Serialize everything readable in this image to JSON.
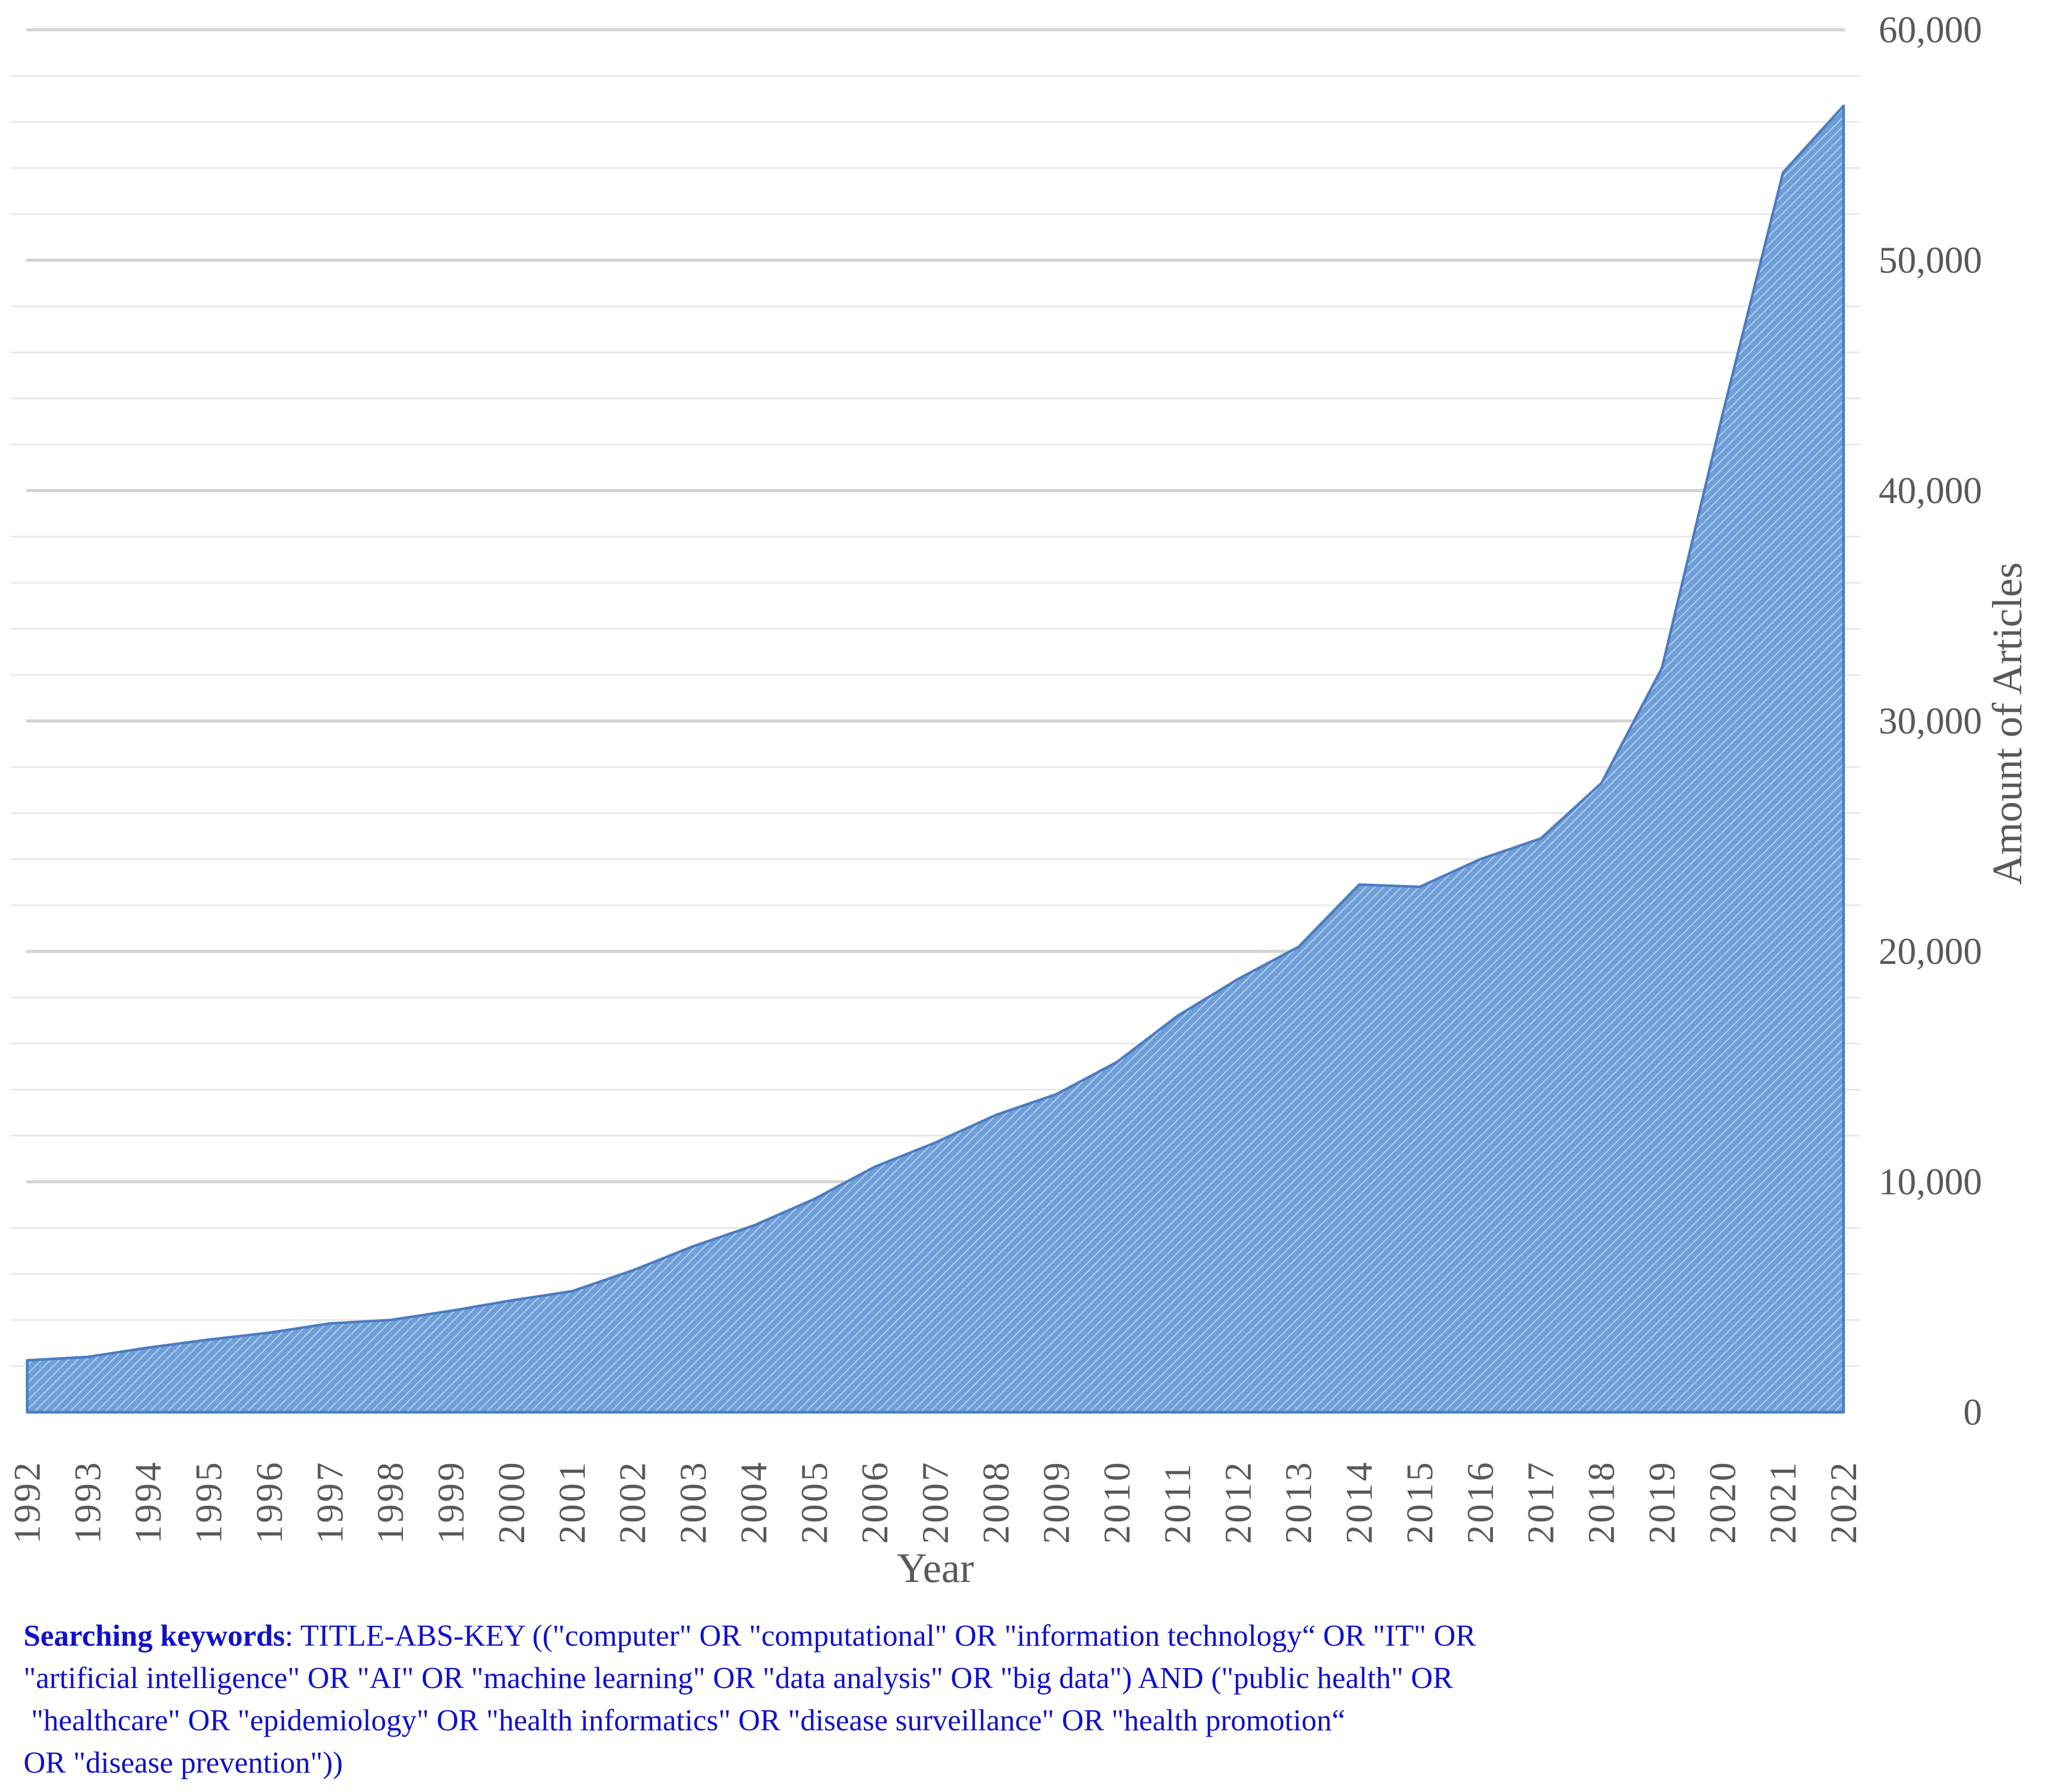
{
  "colors": {
    "area_fill": "#6f9fd8",
    "area_stroke": "#4a7cc2",
    "hatch": "#ffffff",
    "major_grid": "#d4d4d4",
    "minor_grid": "#e6e6e6",
    "axis_text": "#595959",
    "note_text": "#1010cc"
  },
  "chart_data": {
    "type": "area",
    "title": "",
    "xlabel": "Year",
    "ylabel": "Amount of Articles",
    "ylim": [
      0,
      60000
    ],
    "y_ticks": [
      0,
      10000,
      20000,
      30000,
      40000,
      50000,
      60000
    ],
    "y_tick_labels": [
      "0",
      "10,000",
      "20,000",
      "30,000",
      "40,000",
      "50,000",
      "60,000"
    ],
    "y_axis_side": "right",
    "x_tick_rotation": "vertical",
    "grid": true,
    "categories": [
      "1992",
      "1993",
      "1994",
      "1995",
      "1996",
      "1997",
      "1998",
      "1999",
      "2000",
      "2001",
      "2002",
      "2003",
      "2004",
      "2005",
      "2006",
      "2007",
      "2008",
      "2009",
      "2010",
      "2011",
      "2012",
      "2013",
      "2014",
      "2015",
      "2016",
      "2017",
      "2018",
      "2019",
      "2020",
      "2021",
      "2022"
    ],
    "series": [
      {
        "name": "Amount of Articles",
        "values": [
          2250,
          2400,
          2800,
          3150,
          3450,
          3850,
          4000,
          4400,
          4850,
          5250,
          6150,
          7200,
          8100,
          9250,
          10650,
          11700,
          12900,
          13800,
          15200,
          17200,
          18800,
          20200,
          22900,
          22800,
          24000,
          24900,
          27300,
          32300,
          43300,
          53800,
          56700
        ]
      }
    ]
  },
  "note": {
    "label": "Searching keywords",
    "line1": "TITLE-ABS-KEY ((\"computer\" OR \"computational\" OR \"information technology“ OR \"IT\" OR",
    "line2": "\"artificial intelligence\" OR \"AI\" OR \"machine learning\" OR \"data analysis\" OR \"big data\") AND (\"public health\" OR",
    "line3": " \"healthcare\" OR \"epidemiology\" OR \"health informatics\" OR \"disease surveillance\" OR \"health promotion“",
    "line4": "OR \"disease prevention\"))"
  }
}
